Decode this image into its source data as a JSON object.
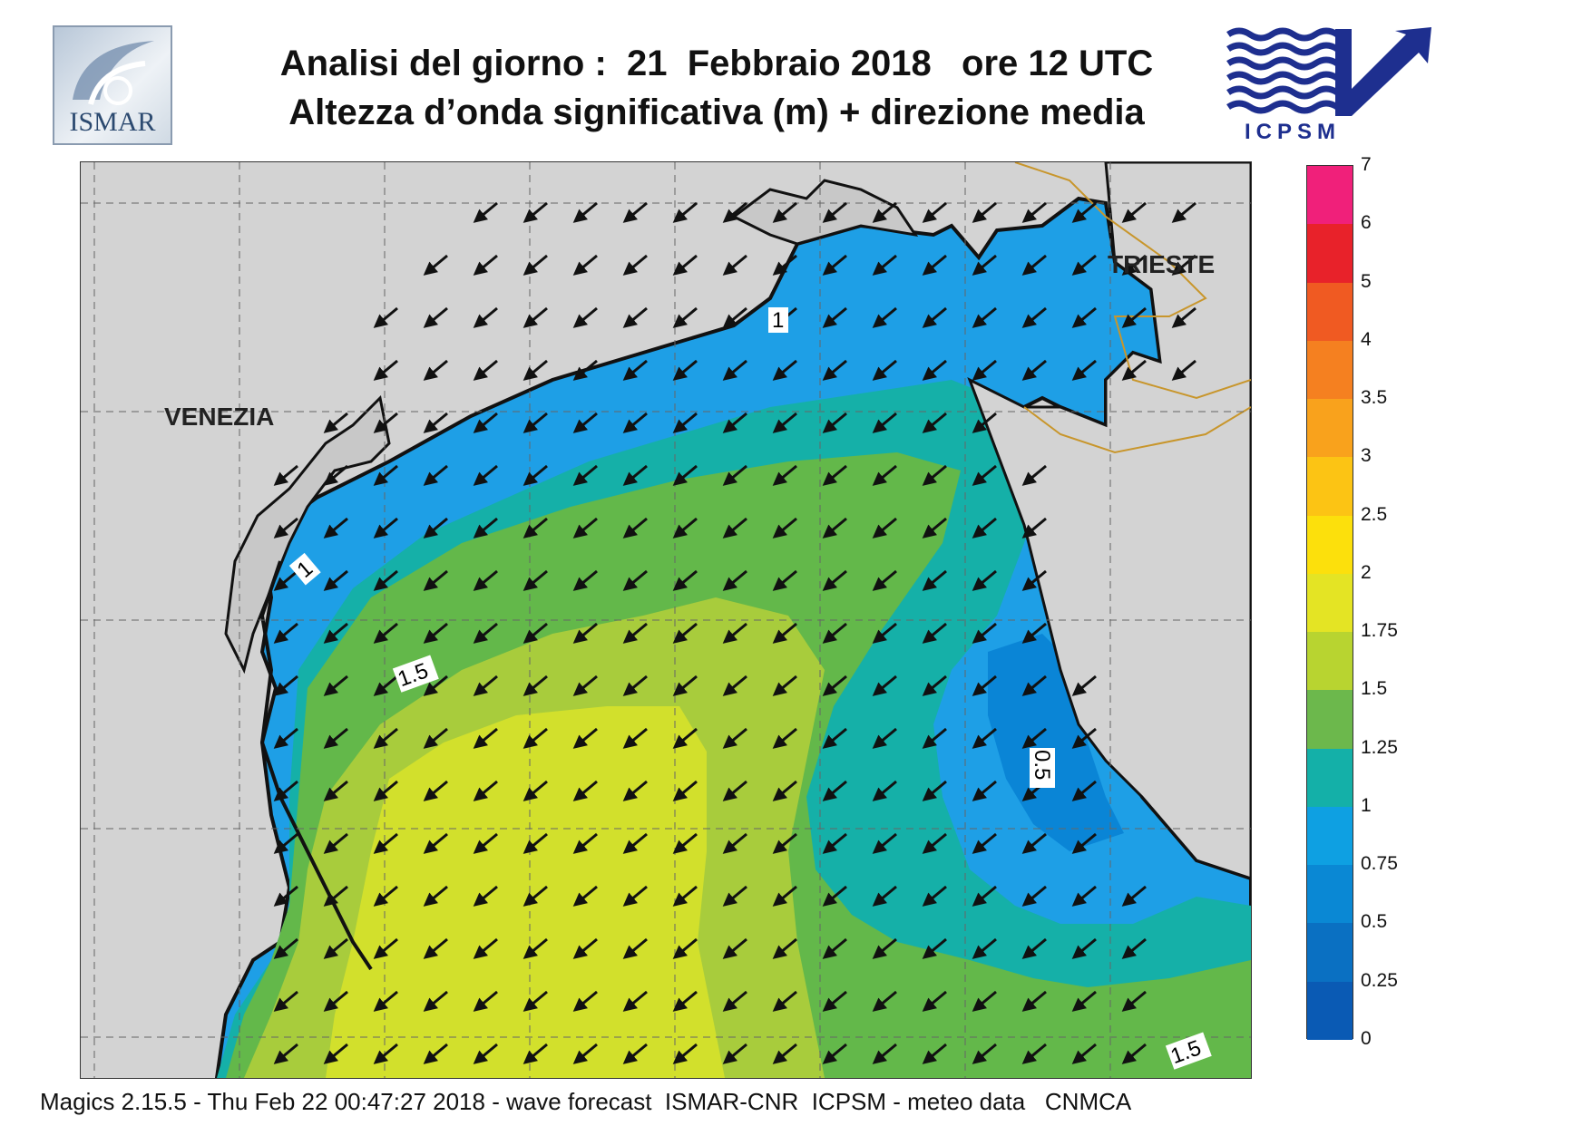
{
  "header": {
    "title_line1": "Analisi del giorno :  21  Febbraio 2018   ore 12 UTC",
    "title_line2": "Altezza d’onda significativa (m) + direzione media"
  },
  "logos": {
    "left": {
      "text": "ISMAR"
    },
    "right": {
      "text": "ICPSM"
    }
  },
  "map": {
    "cities": [
      {
        "name": "VENEZIA"
      },
      {
        "name": "TRIESTE"
      }
    ],
    "contour_labels": [
      "1",
      "1",
      "1.5",
      "0.5",
      "1.5"
    ],
    "land_color": "#d3d3d3",
    "sea_colors": {
      "0.5": "#0a85d6",
      "0.75": "#1e9fe6",
      "1": "#15b0a8",
      "1.25": "#63b84a",
      "1.5": "#a8cc3c",
      "1.75": "#d2e02c"
    }
  },
  "colorbar": {
    "levels": [
      "7",
      "6",
      "5",
      "4",
      "3.5",
      "3",
      "2.5",
      "2",
      "1.75",
      "1.5",
      "1.25",
      "1",
      "0.75",
      "0.5",
      "0.25",
      "0"
    ],
    "colors": [
      "#f0207a",
      "#e8222a",
      "#f05a22",
      "#f58020",
      "#f9a21c",
      "#fcc414",
      "#fce00c",
      "#e4e424",
      "#b8d430",
      "#6cb84c",
      "#14b0a8",
      "#0ea0e2",
      "#0a88d4",
      "#0a70c2",
      "#0a5ab4"
    ]
  },
  "footer": {
    "text": "Magics 2.15.5 - Thu Feb 22 00:47:27 2018 - wave forecast  ISMAR-CNR  ICPSM - meteo data   CNMCA"
  }
}
